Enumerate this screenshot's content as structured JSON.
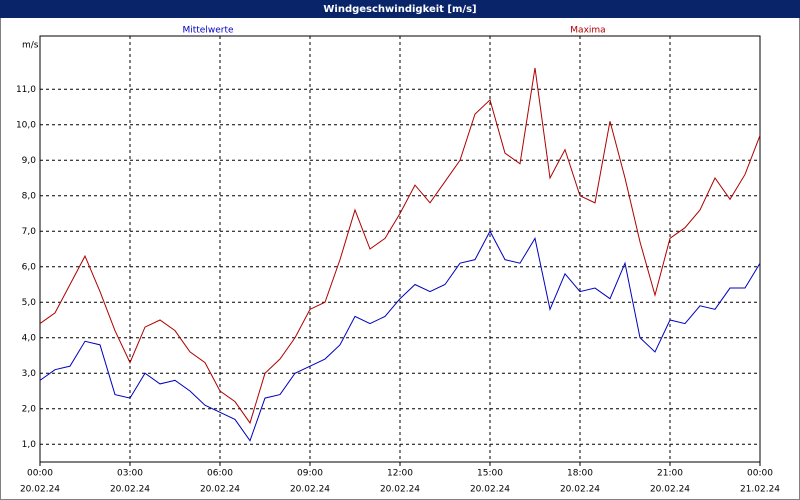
{
  "window_title": "Windgeschwindigkeit [m/s]",
  "chart_data": {
    "type": "line",
    "y_label": "m/s",
    "x": [
      0,
      0.5,
      1,
      1.5,
      2,
      2.5,
      3,
      3.5,
      4,
      4.5,
      5,
      5.5,
      6,
      6.5,
      7,
      7.5,
      8,
      8.5,
      9,
      9.5,
      10,
      10.5,
      11,
      11.5,
      12,
      12.5,
      13,
      13.5,
      14,
      14.5,
      15,
      15.5,
      16,
      16.5,
      17,
      17.5,
      18,
      18.5,
      19,
      19.5,
      20,
      20.5,
      21,
      21.5,
      22,
      22.5,
      23,
      23.5,
      24
    ],
    "series": [
      {
        "name": "Mittelwerte",
        "color": "#0000c0",
        "values": [
          2.8,
          3.1,
          3.2,
          3.9,
          3.8,
          2.4,
          2.3,
          3.0,
          2.7,
          2.8,
          2.5,
          2.1,
          1.9,
          1.7,
          1.1,
          2.3,
          2.4,
          3.0,
          3.2,
          3.4,
          3.8,
          4.6,
          4.4,
          4.6,
          5.1,
          5.5,
          5.3,
          5.5,
          6.1,
          6.2,
          7.0,
          6.2,
          6.1,
          6.8,
          4.8,
          5.8,
          5.3,
          5.4,
          5.1,
          6.1,
          4.0,
          3.6,
          4.5,
          4.4,
          4.9,
          4.8,
          5.4,
          5.4,
          6.1
        ]
      },
      {
        "name": "Maxima",
        "color": "#b00000",
        "values": [
          4.4,
          4.7,
          5.5,
          6.3,
          5.3,
          4.2,
          3.3,
          4.3,
          4.5,
          4.2,
          3.6,
          3.3,
          2.5,
          2.2,
          1.6,
          3.0,
          3.4,
          4.0,
          4.8,
          5.0,
          6.2,
          7.6,
          6.5,
          6.8,
          7.5,
          8.3,
          7.8,
          8.4,
          9.0,
          10.3,
          10.7,
          9.2,
          8.9,
          11.6,
          8.5,
          9.3,
          8.0,
          7.8,
          10.1,
          8.5,
          6.7,
          5.2,
          6.8,
          7.1,
          7.6,
          8.5,
          7.9,
          8.6,
          9.7
        ]
      }
    ],
    "xlim": [
      0,
      24
    ],
    "xticks": [
      {
        "value": 0,
        "label": "00:00"
      },
      {
        "value": 3,
        "label": "03:00"
      },
      {
        "value": 6,
        "label": "06:00"
      },
      {
        "value": 9,
        "label": "09:00"
      },
      {
        "value": 12,
        "label": "12:00"
      },
      {
        "value": 15,
        "label": "15:00"
      },
      {
        "value": 18,
        "label": "18:00"
      },
      {
        "value": 21,
        "label": "21:00"
      },
      {
        "value": 24,
        "label": "00:00"
      }
    ],
    "xtick_dates": [
      "20.02.24",
      "20.02.24",
      "20.02.24",
      "20.02.24",
      "20.02.24",
      "20.02.24",
      "20.02.24",
      "20.02.24",
      "21.02.24"
    ],
    "ylim": [
      0.5,
      12.5
    ],
    "yticks": [
      {
        "value": 1,
        "label": "1,0"
      },
      {
        "value": 2,
        "label": "2,0"
      },
      {
        "value": 3,
        "label": "3,0"
      },
      {
        "value": 4,
        "label": "4,0"
      },
      {
        "value": 5,
        "label": "5,0"
      },
      {
        "value": 6,
        "label": "6,0"
      },
      {
        "value": 7,
        "label": "7,0"
      },
      {
        "value": 8,
        "label": "8,0"
      },
      {
        "value": 9,
        "label": "9,0"
      },
      {
        "value": 10,
        "label": "10,0"
      },
      {
        "value": 11,
        "label": "11,0"
      }
    ],
    "grid": true
  }
}
